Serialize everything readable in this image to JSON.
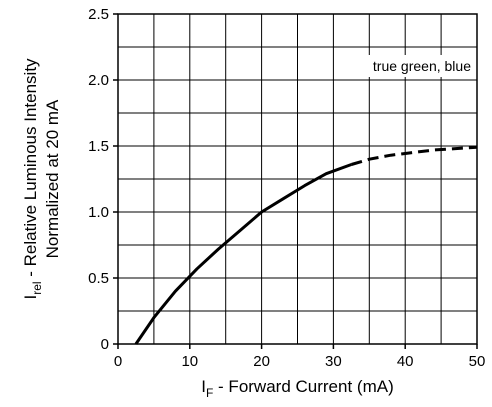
{
  "chart_data": {
    "type": "line",
    "xlabel_main": "I",
    "xlabel_sub": "F",
    "xlabel_rest": " - Forward Current (mA)",
    "ylabel_main": "I",
    "ylabel_sub": "rel",
    "ylabel_rest": " - Relative Luminous Intensity",
    "ylabel_line2": "Normalized at 20 mA",
    "xlim": [
      0,
      50
    ],
    "ylim": [
      0,
      2.5
    ],
    "x_ticks": [
      0,
      10,
      20,
      30,
      40,
      50
    ],
    "x_tick_labels": [
      "0",
      "10",
      "20",
      "30",
      "40",
      "50"
    ],
    "y_ticks": [
      0,
      0.5,
      1.0,
      1.5,
      2.0,
      2.5
    ],
    "y_tick_labels": [
      "0",
      "0.5",
      "1.0",
      "1.5",
      "2.0",
      "2.5"
    ],
    "x_grid_step": 5,
    "y_grid_step": 0.25,
    "grid": true,
    "annotation": "true green, blue",
    "series": [
      {
        "style": "solid",
        "x": [
          2.5,
          5,
          8,
          11,
          14,
          17,
          20,
          23,
          26,
          29,
          32.5
        ],
        "y": [
          0,
          0.2,
          0.4,
          0.57,
          0.72,
          0.86,
          1.0,
          1.1,
          1.2,
          1.29,
          1.36
        ]
      },
      {
        "style": "dashed",
        "x": [
          32.5,
          35,
          38,
          41,
          44,
          47,
          50
        ],
        "y": [
          1.36,
          1.4,
          1.43,
          1.45,
          1.47,
          1.48,
          1.49
        ]
      }
    ]
  }
}
